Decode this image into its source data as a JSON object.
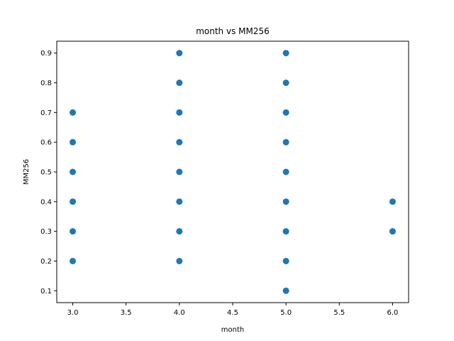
{
  "chart_data": {
    "type": "scatter",
    "title": "month vs MM256",
    "xlabel": "month",
    "ylabel": "MM256",
    "xlim": [
      2.85,
      6.15
    ],
    "ylim": [
      0.06,
      0.94
    ],
    "xticks": [
      3.0,
      3.5,
      4.0,
      4.5,
      5.0,
      5.5,
      6.0
    ],
    "xtick_labels": [
      "3.0",
      "3.5",
      "4.0",
      "4.5",
      "5.0",
      "5.5",
      "6.0"
    ],
    "yticks": [
      0.1,
      0.2,
      0.3,
      0.4,
      0.5,
      0.6,
      0.7,
      0.8,
      0.9
    ],
    "ytick_labels": [
      "0.1",
      "0.2",
      "0.3",
      "0.4",
      "0.5",
      "0.6",
      "0.7",
      "0.8",
      "0.9"
    ],
    "grid": false,
    "marker_color": "#1f77b4",
    "series": [
      {
        "points": [
          [
            3,
            0.2
          ],
          [
            3,
            0.3
          ],
          [
            3,
            0.4
          ],
          [
            3,
            0.5
          ],
          [
            3,
            0.6
          ],
          [
            3,
            0.7
          ],
          [
            4,
            0.2
          ],
          [
            4,
            0.3
          ],
          [
            4,
            0.4
          ],
          [
            4,
            0.5
          ],
          [
            4,
            0.6
          ],
          [
            4,
            0.7
          ],
          [
            4,
            0.8
          ],
          [
            4,
            0.9
          ],
          [
            5,
            0.1
          ],
          [
            5,
            0.2
          ],
          [
            5,
            0.3
          ],
          [
            5,
            0.4
          ],
          [
            5,
            0.5
          ],
          [
            5,
            0.6
          ],
          [
            5,
            0.7
          ],
          [
            5,
            0.8
          ],
          [
            5,
            0.9
          ],
          [
            6,
            0.3
          ],
          [
            6,
            0.4
          ]
        ]
      }
    ]
  }
}
